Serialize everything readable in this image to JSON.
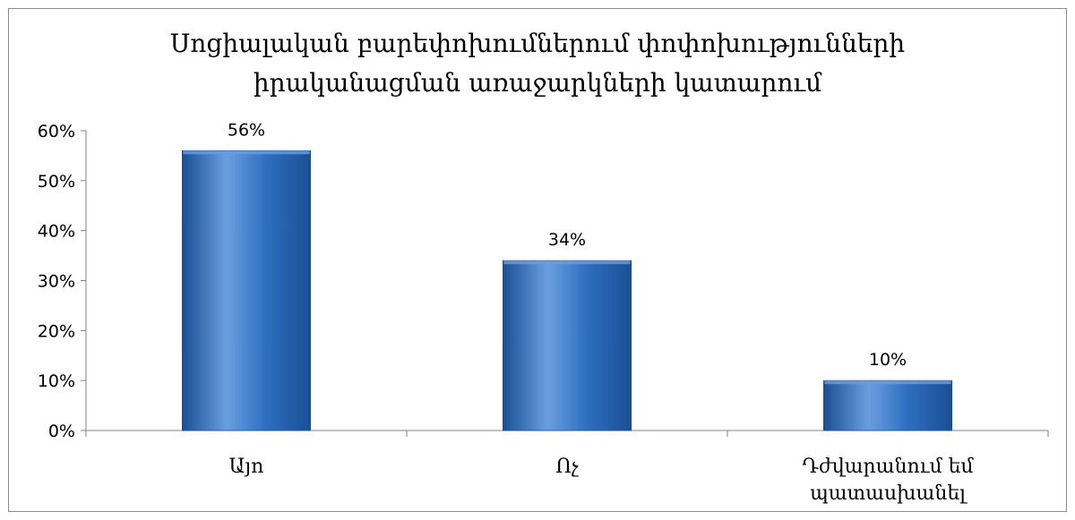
{
  "chart_data": {
    "type": "bar",
    "title": "Սոցիալական բարեփոխումներում փոփոխությունների իրականացման առաջարկների կատարում",
    "title_lines": [
      "Սոցիալական բարեփոխումներում փոփոխությունների",
      "իրականացման առաջարկների կատարում"
    ],
    "categories": [
      "Այո",
      "Ոչ",
      "Դժվարանում եմ պատասխանել"
    ],
    "category_lines": [
      [
        "Այո"
      ],
      [
        "Ոչ"
      ],
      [
        "Դժվարանում եմ",
        "պատասխանել"
      ]
    ],
    "values": [
      56,
      34,
      10
    ],
    "data_labels": [
      "56%",
      "34%",
      "10%"
    ],
    "y_tick_labels": [
      "0%",
      "10%",
      "20%",
      "30%",
      "40%",
      "50%",
      "60%"
    ],
    "ylim": [
      0,
      60
    ],
    "y_tick_step": 10,
    "xlabel": "",
    "ylabel": "",
    "grid": false,
    "legend": "none",
    "bar_color": "#2f6fc0",
    "bar_color_light": "#6a9ee0",
    "bar_color_dark": "#1b4f94"
  }
}
